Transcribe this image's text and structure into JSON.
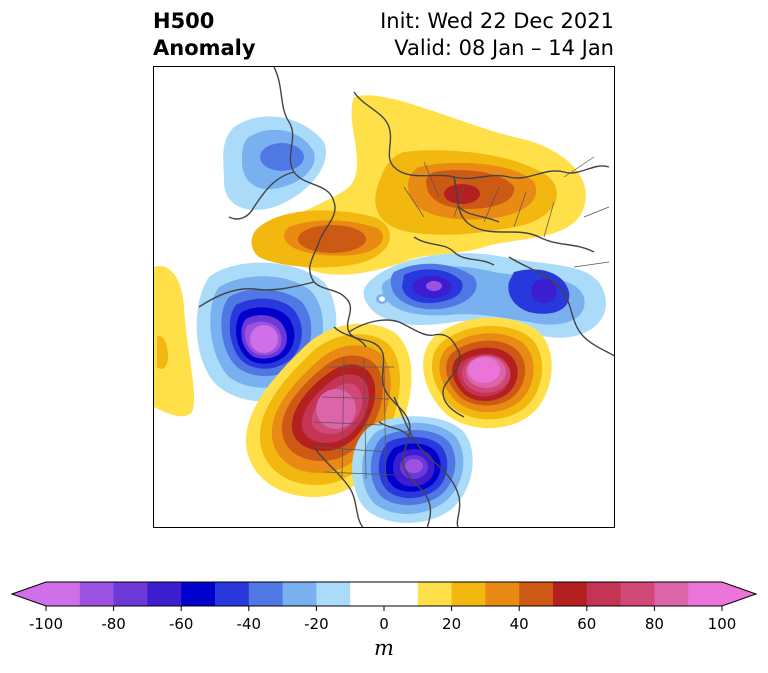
{
  "title": {
    "left_line1": "H500",
    "left_line2": "Anomaly",
    "right_line1": "Init: Wed 22 Dec 2021",
    "right_line2": "Valid: 08 Jan – 14 Jan"
  },
  "colorbar": {
    "levels": [
      -100,
      -90,
      -80,
      -70,
      -60,
      -50,
      -40,
      -30,
      -20,
      -10,
      10,
      20,
      30,
      40,
      50,
      60,
      70,
      80,
      90,
      100
    ],
    "tick_values": [
      -100,
      -80,
      -60,
      -40,
      -20,
      0,
      20,
      40,
      60,
      80,
      100
    ],
    "tick_labels": [
      "-100",
      "-80",
      "-60",
      "-40",
      "-20",
      "0",
      "20",
      "40",
      "60",
      "80",
      "100"
    ],
    "colors": [
      "#d070e8",
      "#9c52e0",
      "#6c38d8",
      "#3c1ed0",
      "#0000cc",
      "#2838dc",
      "#5078e4",
      "#78b0f0",
      "#aadcfa",
      "#ffffff",
      "#ffe048",
      "#f2b810",
      "#e88a14",
      "#cc5a14",
      "#b42020",
      "#c43454",
      "#d04878",
      "#dc64a8",
      "#ea74d8"
    ],
    "unit": "m",
    "extend": "both"
  },
  "map": {
    "projection": "polar stereographic",
    "field": "500 hPa geopotential height anomaly",
    "features": [
      "positive anomaly over northern Eurasia/Arctic",
      "negative anomaly over Alaska / North Pacific",
      "positive anomaly over western North America",
      "positive anomaly over North Atlantic",
      "negative anomaly over eastern US / western Atlantic",
      "negative anomaly over Siberia/East Asia"
    ]
  }
}
